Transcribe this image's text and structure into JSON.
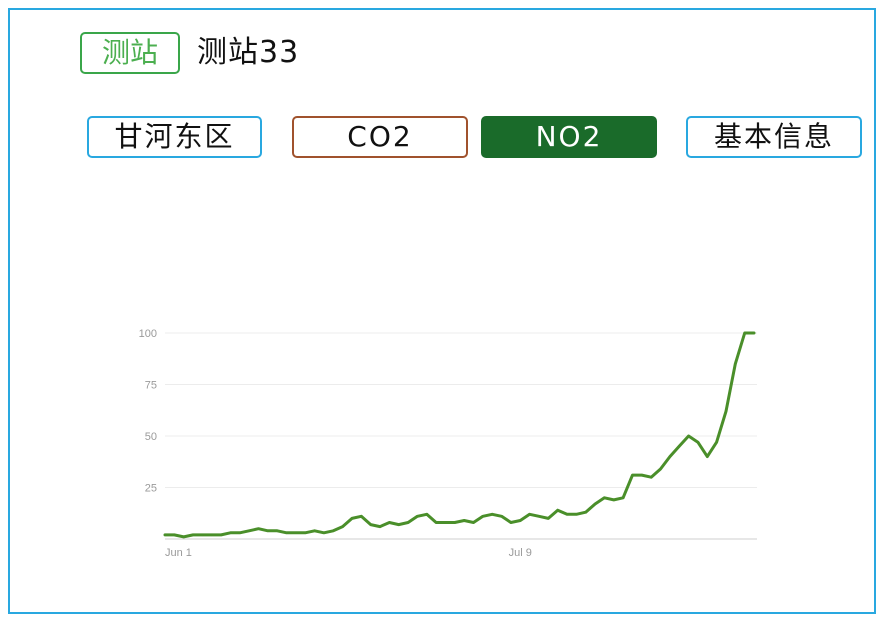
{
  "header": {
    "badge_label": "测站",
    "station_name": "测站33"
  },
  "tabs": [
    {
      "label": "甘河东区"
    },
    {
      "label": "CO2"
    },
    {
      "label": "NO2"
    },
    {
      "label": "基本信息"
    }
  ],
  "colors": {
    "frame": "#29a8e0",
    "badge": "#3aa64a",
    "co2_border": "#a0522d",
    "no2_active": "#1a6b2a",
    "line": "#4a8f2a"
  },
  "chart_data": {
    "type": "line",
    "title": "",
    "xlabel": "",
    "ylabel": "",
    "ylim": [
      0,
      100
    ],
    "yticks": [
      100,
      75,
      50,
      25
    ],
    "xtick_labels": [
      {
        "label": "Jun 1",
        "index": 0
      },
      {
        "label": "Jul 9",
        "index": 38
      }
    ],
    "grid": true,
    "series": [
      {
        "values": [
          2,
          2,
          1,
          2,
          2,
          2,
          2,
          3,
          3,
          4,
          5,
          4,
          4,
          3,
          3,
          3,
          4,
          3,
          4,
          6,
          10,
          11,
          7,
          6,
          8,
          7,
          8,
          11,
          12,
          8,
          8,
          8,
          9,
          8,
          11,
          12,
          11,
          8,
          9,
          12,
          11,
          10,
          14,
          12,
          12,
          13,
          17,
          20,
          19,
          20,
          31,
          31,
          30,
          34,
          40,
          45,
          50,
          47,
          40,
          47,
          62,
          85,
          100,
          100
        ]
      }
    ]
  }
}
